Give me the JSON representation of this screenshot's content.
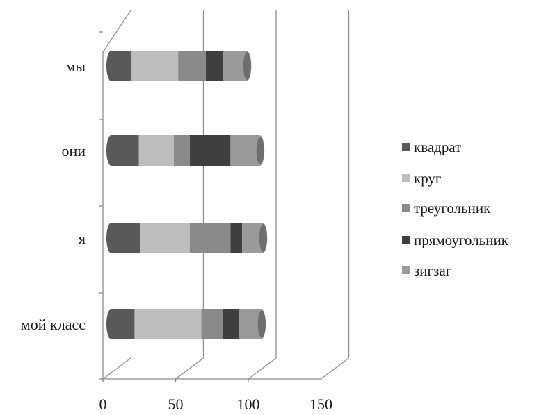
{
  "chart_data": {
    "type": "bar",
    "orientation": "horizontal",
    "stacked": true,
    "style": "3d-cylinder",
    "grayscale": true,
    "categories": [
      "мой класс",
      "я",
      "они",
      "мы"
    ],
    "series": [
      {
        "name": "квадрат",
        "values": [
          16,
          20,
          19,
          14
        ],
        "color": "#595959"
      },
      {
        "name": "круг",
        "values": [
          46,
          34,
          24,
          32
        ],
        "color": "#bdbdbd"
      },
      {
        "name": "треугольник",
        "values": [
          15,
          28,
          11,
          19
        ],
        "color": "#8a8a8a"
      },
      {
        "name": "прямоугольник",
        "values": [
          11,
          8,
          28,
          12
        ],
        "color": "#3f3f3f"
      },
      {
        "name": "зигзаг",
        "values": [
          15,
          14,
          20,
          16
        ],
        "color": "#9a9a9a"
      }
    ],
    "x_ticks": [
      "0",
      "50",
      "100",
      "150"
    ],
    "xlim": [
      0,
      150
    ],
    "grid": true,
    "legend_position": "right"
  }
}
